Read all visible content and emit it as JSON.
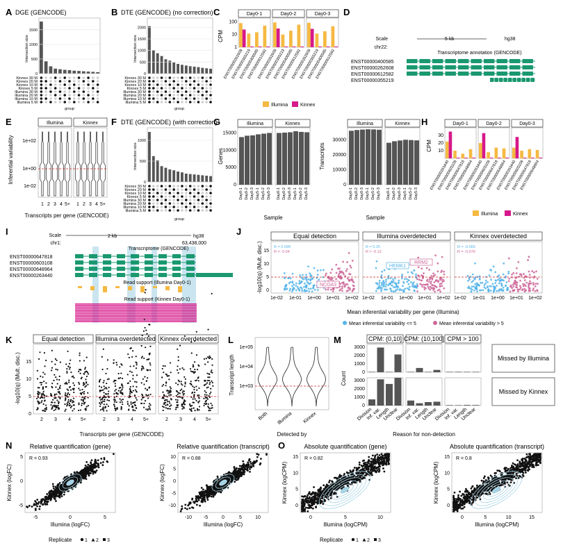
{
  "figure": {
    "panel_letters": [
      "A",
      "B",
      "C",
      "D",
      "E",
      "F",
      "G",
      "H",
      "I",
      "J",
      "K",
      "L",
      "M",
      "N",
      "O"
    ]
  },
  "colors": {
    "illumina": "#f5b942",
    "kinnex": "#d6198a",
    "blue_point": "#56b4e9",
    "pink_point": "#cc6699",
    "green_annot": "#1a9870",
    "orange_read": "#f5b942",
    "red_dash": "#cc2222",
    "light_blue": "#a7d3e6",
    "bar_grey": "#555555"
  },
  "panelA": {
    "title": "DGE (GENCODE)",
    "ylabel": "Intersection size",
    "yticks": [
      "0",
      "500",
      "1000",
      "1500"
    ],
    "xlabel": "group",
    "set_labels": [
      "Kinnex 30 M",
      "Kinnex 20 M",
      "Kinnex 10 M",
      "Kinnex 5 M",
      "Illumina 30 M",
      "Illumina 20 M",
      "Illumina 10 M",
      "Illumina 5 M"
    ]
  },
  "panelB": {
    "title": "DTE (GENCODE) (no correction)",
    "ylabel": "Intersection size",
    "yticks": [
      "0",
      "500",
      "1000",
      "1500",
      "2000"
    ],
    "xlabel": "group",
    "set_labels": [
      "Kinnex 30 M",
      "Kinnex 20 M",
      "Kinnex 10 M",
      "Kinnex 5 M",
      "Illumina 30 M",
      "Illumina 20 M",
      "Illumina 10 M",
      "Illumina 5 M"
    ]
  },
  "panelF": {
    "title": "DTE (GENCODE) (with correction)",
    "ylabel": "Intersection size",
    "yticks": [
      "0",
      "500",
      "1000"
    ],
    "xlabel": "group",
    "set_labels": [
      "Kinnex 30 M",
      "Kinnex 20 M",
      "Kinnex 10 M",
      "Kinnex 5 M",
      "Illumina 30 M",
      "Illumina 20 M",
      "Illumina 10 M",
      "Illumina 5 M"
    ]
  },
  "panelC": {
    "ylabel": "CPM",
    "yticks": [
      "1",
      "10",
      "100"
    ],
    "facets": [
      "Day0-1",
      "Day0-2",
      "Day0-3"
    ],
    "categories": [
      "ENST00000262608",
      "ENST00000355219",
      "ENST00000400585",
      "ENST00000612582"
    ],
    "legend": [
      "Illumina",
      "Kinnex"
    ]
  },
  "panelD": {
    "scale_label": "Scale",
    "scale_value": "5 kb",
    "genome": "hg38",
    "chrom": "chr22:",
    "track_title": "Transcriptome annotation (GENCODE)",
    "transcripts": [
      "ENST00000400585",
      "ENST00000262608",
      "ENST00000612582",
      "ENST00000355219"
    ]
  },
  "panelE": {
    "facets": [
      "Illumina",
      "Kinnex"
    ],
    "ylabel": "Inferential variability",
    "yticks": [
      "1e+02",
      "1e+00",
      "1e-02"
    ],
    "xticks": [
      "1",
      "2",
      "3",
      "4",
      "5+"
    ],
    "xlabel": "Transcripts per gene (GENCODE)"
  },
  "panelG": {
    "left": {
      "facets": [
        "Illumina",
        "Kinnex"
      ],
      "ylabel": "Genes",
      "yticks": [
        "0",
        "5000",
        "10000",
        "15000"
      ]
    },
    "right": {
      "facets": [
        "Illumina",
        "Kinnex"
      ],
      "ylabel": "Transcripts",
      "yticks": [
        "0",
        "10000",
        "20000",
        "30000"
      ]
    },
    "xticks": [
      "Day0-1",
      "Day0-2",
      "Day0-3",
      "Day5-1",
      "Day5-2",
      "Day5-3"
    ],
    "xlabel": "Sample"
  },
  "panelH": {
    "ylabel": "CPM",
    "yticks": [
      "10",
      "20",
      "30"
    ],
    "facets": [
      "Day0-1",
      "Day0-2",
      "Day0-3"
    ],
    "categories": [
      "ENST00000263440",
      "ENST00000603108",
      "ENST00000647818",
      "ENST00000648964"
    ],
    "legend": [
      "Illumina",
      "Kinnex"
    ]
  },
  "panelI": {
    "scale_label": "Scale",
    "scale_value": "2 kb",
    "genome": "hg38",
    "chrom": "chr1:",
    "coord": "63,438,000",
    "track_title": "Transcriptome (GENCODE)",
    "transcripts": [
      "ENST00000647818",
      "ENST00000603108",
      "ENST00000648964",
      "ENST00000263440"
    ],
    "read1": "Read support (Illumina Day0-1)",
    "read2": "Read support (Kinnex Day0-1)"
  },
  "panelJ": {
    "facets": [
      "Equal detection",
      "Illumina overdetected",
      "Kinnex overdetected"
    ],
    "ylabel": "-log10(q) (Mult. disc.)",
    "yticks": [
      "0",
      "5",
      "10",
      "15"
    ],
    "xticks": [
      "1e-02",
      "1e-01",
      "1e+00",
      "1e+01",
      "1e+02"
    ],
    "xlabel": "Mean inferential variability per gene (Illumina)",
    "stats": [
      {
        "r_blue": "R = 0.099",
        "r_pink": "R = -0.04"
      },
      {
        "r_blue": "R = 0.25",
        "r_pink": "R = -0.12"
      },
      {
        "r_blue": "R = -0.065",
        "r_pink": "R = -0.076"
      }
    ],
    "gene_labels": [
      "NCOA3",
      "HEMK1",
      "RRM2"
    ],
    "legend": [
      "Mean inferential variability <= 5",
      "Mean inferential variability > 5"
    ]
  },
  "panelK": {
    "facets": [
      "Equal detection",
      "Illumina overdetected",
      "Kinnex overdetected"
    ],
    "ylabel": "-log10(q) (Mult. disc.)",
    "yticks": [
      "0",
      "5",
      "10",
      "15"
    ],
    "xticks": [
      "2",
      "3",
      "4",
      "5+"
    ],
    "xlabel": "Transcripts per gene (GENCODE)"
  },
  "panelL": {
    "ylabel": "Transcript length",
    "yticks": [
      "1e+05",
      "1e+04",
      "1e+03"
    ],
    "xticks": [
      "Both",
      "Illumina",
      "Kinnex"
    ],
    "xlabel": "Detected by"
  },
  "panelM": {
    "facets_top": [
      "CPM: (0,10]",
      "CPM: (10,100]",
      "CPM > 100"
    ],
    "facets_right": [
      "Missed by Illumina",
      "Missed by Kinnex"
    ],
    "ylabel": "Count",
    "yticks_top": [
      "0",
      "1000",
      "2000",
      "3000"
    ],
    "yticks_bottom": [
      "0",
      "1000",
      "2000",
      "3000"
    ],
    "xticks": [
      "Division",
      "Inf. var.",
      "Length",
      "Unclear"
    ],
    "xlabel": "Reason for non-detection"
  },
  "panelN": {
    "plots": [
      {
        "title": "Relative quantification (gene)",
        "r": "R = 0.93",
        "xlabel": "Illumina (logFC)",
        "ylabel": "Kinnex (logFC)",
        "xticks": [
          "-5",
          "0",
          "5"
        ],
        "yticks": [
          "-5",
          "0",
          "5"
        ]
      },
      {
        "title": "Relative quantification (transcript)",
        "r": "R = 0.88",
        "xlabel": "Illumina (logFC)",
        "ylabel": "Kinnex (logFC)",
        "xticks": [
          "-10",
          "-5",
          "0",
          "5",
          "10"
        ],
        "yticks": [
          "-10",
          "-5",
          "0",
          "5",
          "10"
        ]
      }
    ],
    "legend_title": "Replicate",
    "legend_items": [
      "1",
      "2",
      "3"
    ]
  },
  "panelO": {
    "plots": [
      {
        "title": "Absolute quantification (gene)",
        "r": "R = 0.82",
        "xlabel": "Illumina (logCPM)",
        "ylabel": "Kinnex (logCPM)",
        "xticks": [
          "0",
          "5",
          "10"
        ],
        "yticks": [
          "0",
          "5",
          "10",
          "15"
        ]
      },
      {
        "title": "Absolute quantification (transcript)",
        "r": "R = 0.8",
        "xlabel": "Illumina (logCPM)",
        "ylabel": "Kinnex (logCPM)",
        "xticks": [
          "0",
          "5",
          "10",
          "15"
        ],
        "yticks": [
          "0",
          "5",
          "10",
          "15"
        ]
      }
    ],
    "legend_title": "Replicate",
    "legend_items": [
      "1",
      "2",
      "3"
    ]
  },
  "chart_data": [
    {
      "panel": "A",
      "type": "bar",
      "title": "DGE (GENCODE)",
      "ylabel": "Intersection size",
      "ylim": [
        0,
        1900
      ],
      "values": [
        1780,
        420,
        250,
        170,
        150,
        130,
        120,
        100,
        90,
        80,
        70,
        60,
        50
      ]
    },
    {
      "panel": "B",
      "type": "bar",
      "title": "DTE (GENCODE) (no correction)",
      "ylabel": "Intersection size",
      "ylim": [
        0,
        2400
      ],
      "values": [
        2050,
        1020,
        880,
        760,
        620,
        560,
        480,
        420,
        380,
        350,
        320,
        300,
        280,
        250,
        230,
        210
      ]
    },
    {
      "panel": "F",
      "type": "bar",
      "title": "DTE (GENCODE) (with correction)",
      "ylabel": "Intersection size",
      "ylim": [
        0,
        1300
      ],
      "values": [
        1200,
        620,
        520,
        380,
        340,
        300,
        280,
        250,
        230,
        200,
        190,
        180,
        170,
        160,
        150,
        140
      ]
    },
    {
      "panel": "C",
      "type": "bar",
      "ylabel": "CPM",
      "yscale": "log",
      "facets": [
        "Day0-1",
        "Day0-2",
        "Day0-3"
      ],
      "categories": [
        "ENST00000262608",
        "ENST00000355219",
        "ENST00000400585",
        "ENST00000612582"
      ],
      "series": [
        {
          "name": "Illumina",
          "values": [
            [
              80,
              12,
              15,
              50
            ],
            [
              90,
              10,
              20,
              60
            ],
            [
              85,
              12,
              18,
              45
            ]
          ]
        },
        {
          "name": "Kinnex",
          "values": [
            [
              25,
              1,
              1,
              1
            ],
            [
              30,
              1,
              1,
              1
            ],
            [
              28,
              1,
              1,
              1
            ]
          ]
        }
      ]
    },
    {
      "panel": "H",
      "type": "bar",
      "ylabel": "CPM",
      "facets": [
        "Day0-1",
        "Day0-2",
        "Day0-3"
      ],
      "categories": [
        "ENST00000263440",
        "ENST00000603108",
        "ENST00000647818",
        "ENST00000648964"
      ],
      "series": [
        {
          "name": "Illumina",
          "values": [
            [
              22,
              10,
              6,
              12
            ],
            [
              20,
              8,
              14,
              13
            ],
            [
              14,
              10,
              12,
              11
            ]
          ]
        },
        {
          "name": "Kinnex",
          "values": [
            [
              35,
              0,
              0,
              0
            ],
            [
              33,
              0,
              0,
              0
            ],
            [
              28,
              0,
              0,
              0
            ]
          ]
        }
      ]
    },
    {
      "panel": "G-left",
      "type": "bar",
      "ylabel": "Genes",
      "ylim": [
        0,
        16500
      ],
      "categories": [
        "Day0-1",
        "Day0-2",
        "Day0-3",
        "Day5-1",
        "Day5-2",
        "Day5-3"
      ],
      "series": [
        {
          "name": "Illumina",
          "values": [
            13800,
            14200,
            14300,
            14600,
            14800,
            15000
          ]
        },
        {
          "name": "Kinnex",
          "values": [
            15000,
            15100,
            15200,
            15500,
            15300,
            15200
          ]
        }
      ]
    },
    {
      "panel": "G-right",
      "type": "bar",
      "ylabel": "Transcripts",
      "ylim": [
        0,
        38000
      ],
      "categories": [
        "Day0-1",
        "Day0-2",
        "Day0-3",
        "Day5-1",
        "Day5-2",
        "Day5-3"
      ],
      "series": [
        {
          "name": "Illumina",
          "values": [
            36000,
            36500,
            36800,
            37000,
            36900,
            36700
          ]
        },
        {
          "name": "Kinnex",
          "values": [
            28000,
            29000,
            29500,
            30000,
            29800,
            29600
          ]
        }
      ]
    },
    {
      "panel": "M",
      "type": "bar",
      "ylabel": "Count",
      "facets_top": [
        "CPM: (0,10]",
        "CPM: (10,100]",
        "CPM > 100"
      ],
      "facets_right": [
        "Missed by Illumina",
        "Missed by Kinnex"
      ],
      "categories": [
        "Division",
        "Inf. var.",
        "Length",
        "Unclear"
      ],
      "series": [
        {
          "name": "Missed by Illumina",
          "values": [
            [
              30,
              3200,
              20,
              2300
            ],
            [
              20,
              550,
              10,
              300
            ],
            [
              5,
              60,
              5,
              40
            ]
          ]
        },
        {
          "name": "Missed by Kinnex",
          "values": [
            [
              800,
              3400,
              2800,
              3600
            ],
            [
              650,
              300,
              450,
              500
            ],
            [
              60,
              30,
              80,
              70
            ]
          ]
        }
      ]
    },
    {
      "panel": "N",
      "type": "scatter",
      "titles": [
        "Relative quantification (gene)",
        "Relative quantification (transcript)"
      ],
      "r": [
        0.93,
        0.88
      ]
    },
    {
      "panel": "O",
      "type": "scatter",
      "titles": [
        "Absolute quantification (gene)",
        "Absolute quantification (transcript)"
      ],
      "r": [
        0.82,
        0.8
      ]
    }
  ]
}
